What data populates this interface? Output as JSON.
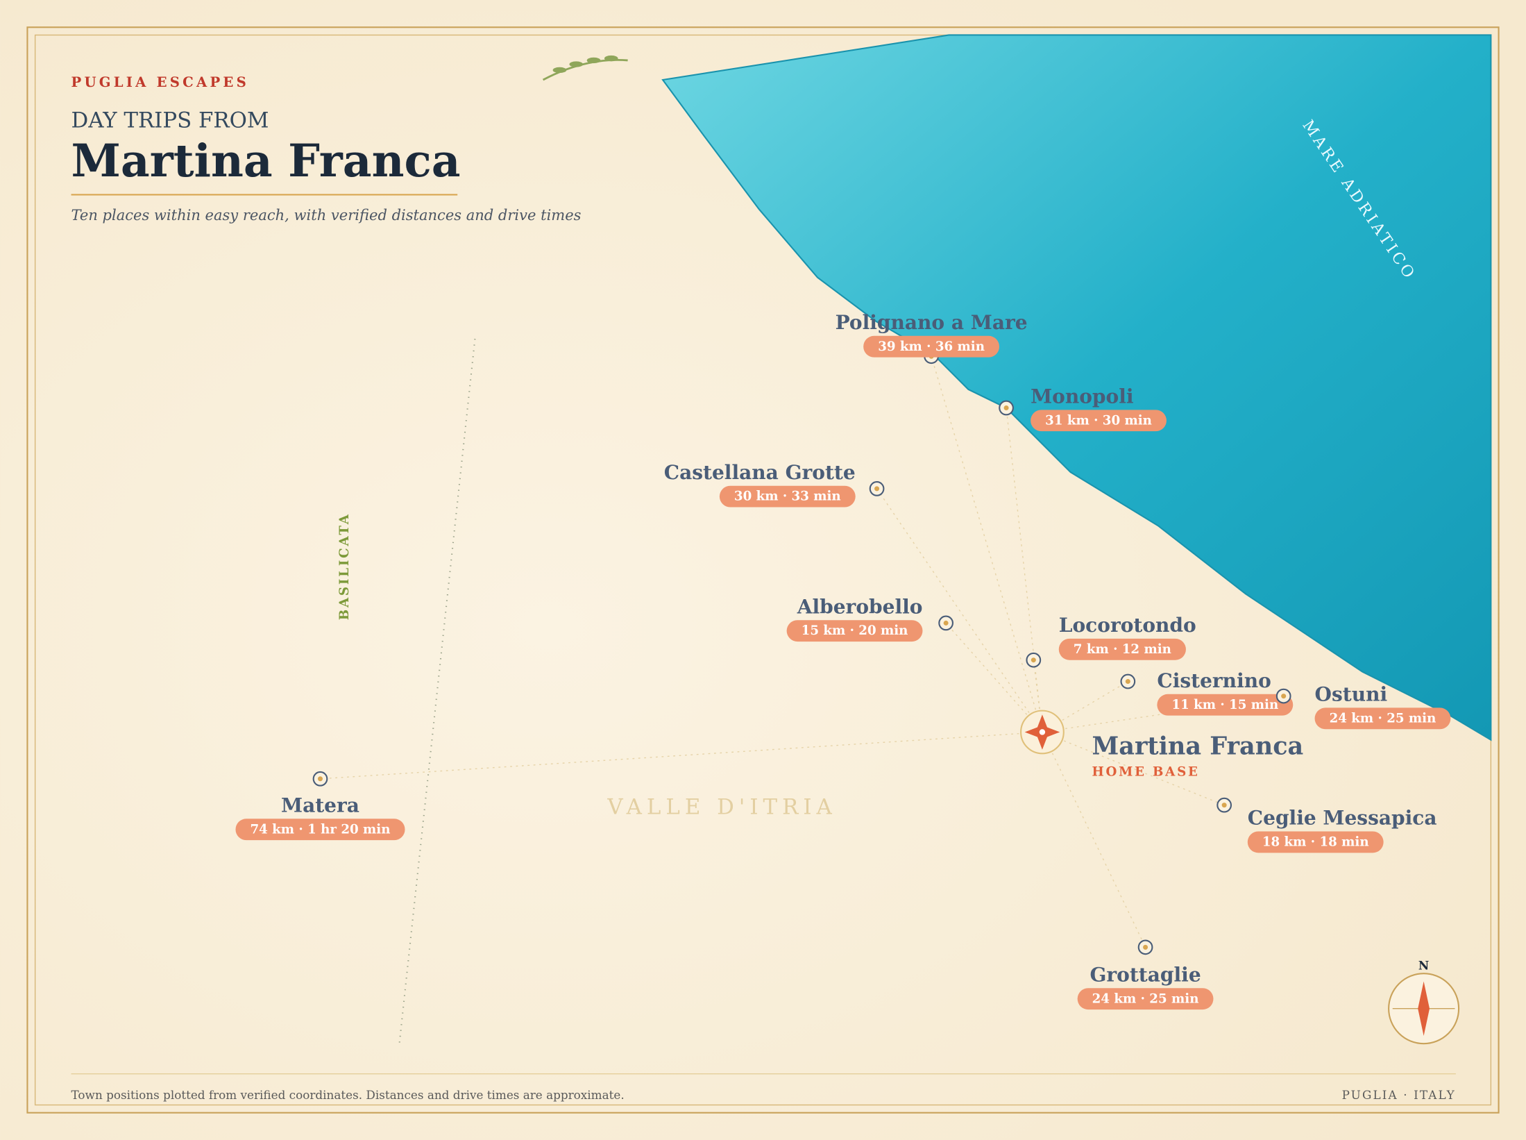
{
  "header": {
    "eyebrow": "PUGLIA ESCAPES",
    "kicker": "DAY TRIPS FROM",
    "title": "Martina Franca",
    "subtitle": "Ten places within easy reach, with verified distances and drive times"
  },
  "labels": {
    "sea": "MARE ADRIATICO",
    "region": "BASILICATA",
    "valley": "VALLE D'ITRIA"
  },
  "home": {
    "name": "Martina Franca",
    "tag": "HOME BASE"
  },
  "places": [
    {
      "name": "Polignano a Mare",
      "trip": "39 km · 36 min"
    },
    {
      "name": "Monopoli",
      "trip": "31 km · 30 min"
    },
    {
      "name": "Castellana Grotte",
      "trip": "30 km · 33 min"
    },
    {
      "name": "Alberobello",
      "trip": "15 km · 20 min"
    },
    {
      "name": "Locorotondo",
      "trip": "7 km · 12 min"
    },
    {
      "name": "Cisternino",
      "trip": "11 km · 15 min"
    },
    {
      "name": "Ostuni",
      "trip": "24 km · 25 min"
    },
    {
      "name": "Ceglie Messapica",
      "trip": "18 km · 18 min"
    },
    {
      "name": "Grottaglie",
      "trip": "24 km · 25 min"
    },
    {
      "name": "Matera",
      "trip": "74 km · 1 hr 20 min"
    }
  ],
  "compass": "N",
  "footer": {
    "note": "Town positions plotted from verified coordinates. Distances and drive times are approximate.",
    "place": "PUGLIA · ITALY"
  }
}
